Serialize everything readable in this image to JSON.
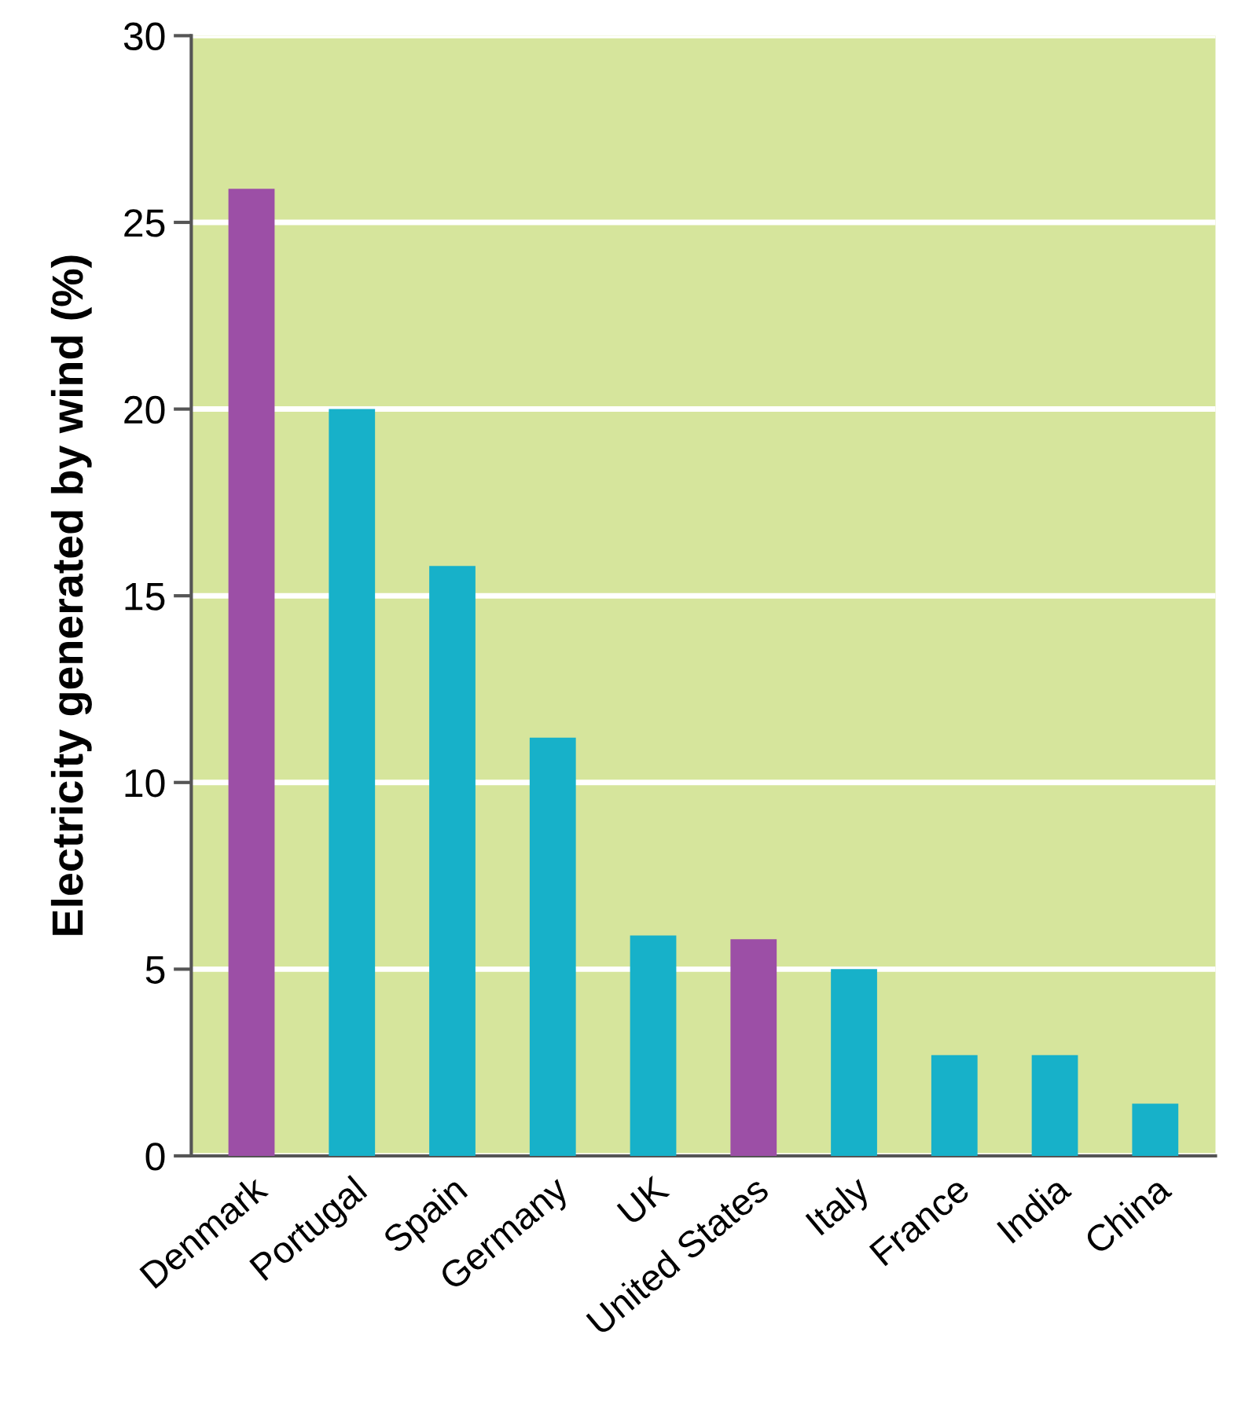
{
  "chart_data": {
    "type": "bar",
    "ylabel": "Electricity generated by wind (%)",
    "categories": [
      "Denmark",
      "Portugal",
      "Spain",
      "Germany",
      "UK",
      "United States",
      "Italy",
      "France",
      "India",
      "China"
    ],
    "values": [
      25.9,
      20,
      15.8,
      11.2,
      5.9,
      5.8,
      5.0,
      2.7,
      2.7,
      1.4
    ],
    "colors": [
      "#9c4fa6",
      "#17b1c9",
      "#17b1c9",
      "#17b1c9",
      "#17b1c9",
      "#9c4fa6",
      "#17b1c9",
      "#17b1c9",
      "#17b1c9",
      "#17b1c9"
    ],
    "ylim": [
      0,
      30
    ],
    "yticks": [
      0,
      5,
      10,
      15,
      20,
      25,
      30
    ],
    "grid": "y"
  }
}
